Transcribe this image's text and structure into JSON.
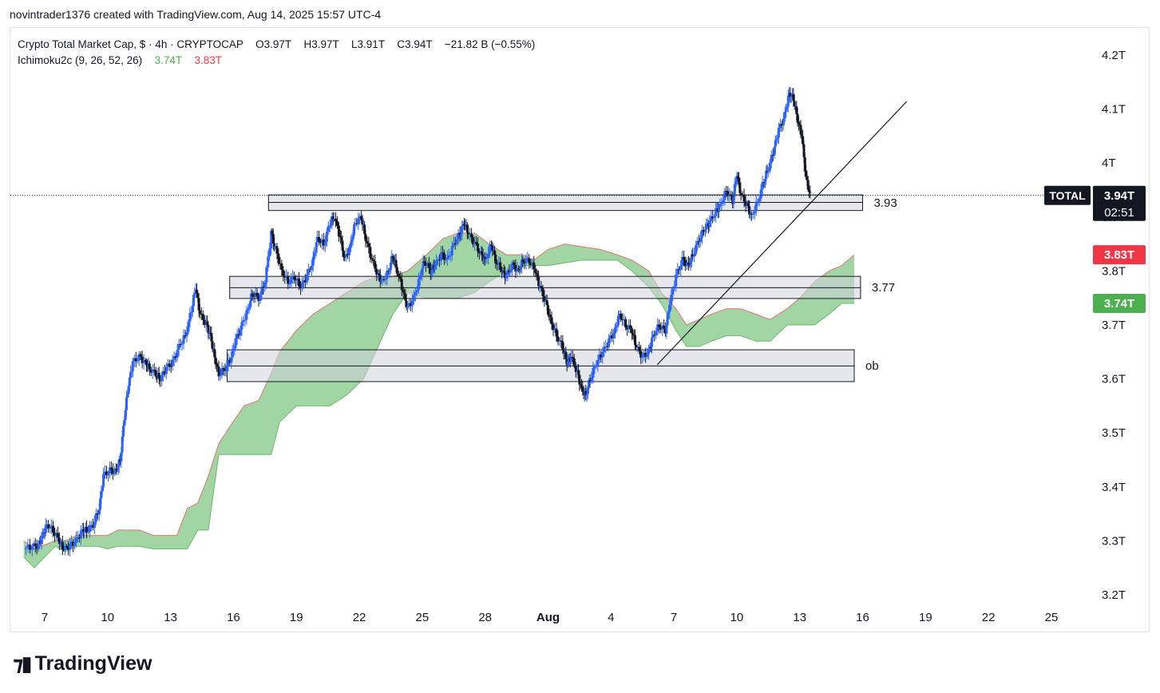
{
  "attribution": "novintrader1376 created with TradingView.com, Aug 14, 2025 15:57 UTC-4",
  "legend": {
    "symbol": "Crypto Total Market Cap, $ · 4h · CRYPTOCAP",
    "open": "O3.97T",
    "high": "H3.97T",
    "low": "L3.91T",
    "close": "C3.94T",
    "change": "−21.82 B (−0.55%)",
    "indicator": "Ichimoku2c (9, 26, 52, 26)",
    "ind_v1": "3.74T",
    "ind_v2": "3.83T"
  },
  "logo_text": "TradingView",
  "colors": {
    "bull": "#2962ff",
    "bear": "#131722",
    "cloud": "#81c784",
    "cloud_edge": "#e57373",
    "zone": "#d1d4dc",
    "zone_edge": "#131722",
    "label_red": "#f23645",
    "label_green": "#4caf50"
  },
  "chart_data": {
    "type": "candlestick",
    "y_axis": {
      "ticks": [
        "3.2T",
        "3.3T",
        "3.4T",
        "3.5T",
        "3.6T",
        "3.7T",
        "3.8T",
        "3.9T",
        "4T",
        "4.1T",
        "4.2T"
      ],
      "tick_values": [
        3.2,
        3.3,
        3.4,
        3.5,
        3.6,
        3.7,
        3.8,
        3.9,
        4.0,
        4.1,
        4.2
      ],
      "range": [
        3.18,
        4.28
      ]
    },
    "x_axis": {
      "ticks": [
        "7",
        "10",
        "13",
        "16",
        "19",
        "22",
        "25",
        "28",
        "Aug",
        "4",
        "7",
        "10",
        "13",
        "16",
        "19",
        "22",
        "25"
      ],
      "range_days": [
        6,
        26.3
      ]
    },
    "price_labels": [
      {
        "text": "TOTAL",
        "value": 3.94,
        "style": "dark"
      },
      {
        "text": "3.94T",
        "sub": "02:51",
        "value": 3.94,
        "style": "dark"
      },
      {
        "text": "3.83T",
        "value": 3.83,
        "style": "red"
      },
      {
        "text": "3.74T",
        "value": 3.74,
        "style": "green"
      }
    ],
    "zones": [
      {
        "label": "3.93",
        "top": 3.941,
        "mid": 3.927,
        "bottom": 3.912,
        "x_start": 17.67,
        "x_end": 46.0
      },
      {
        "label": "3.77",
        "top": 3.79,
        "mid": 3.769,
        "bottom": 3.749,
        "x_start": 15.82,
        "x_end": 45.9
      },
      {
        "label": "ob",
        "top": 3.654,
        "mid": 3.624,
        "bottom": 3.595,
        "x_start": 15.7,
        "x_end": 45.6
      }
    ],
    "trendline": {
      "x1": 36.2,
      "y1": 3.626,
      "x2": 48.1,
      "y2": 4.114
    },
    "cloud": [
      {
        "x": 6.0,
        "upper": 3.3,
        "lower": 3.27
      },
      {
        "x": 6.5,
        "upper": 3.285,
        "lower": 3.25
      },
      {
        "x": 7.5,
        "upper": 3.3,
        "lower": 3.29
      },
      {
        "x": 8.0,
        "upper": 3.3,
        "lower": 3.28
      },
      {
        "x": 8.5,
        "upper": 3.31,
        "lower": 3.29
      },
      {
        "x": 9.5,
        "upper": 3.31,
        "lower": 3.29
      },
      {
        "x": 10.0,
        "upper": 3.31,
        "lower": 3.285
      },
      {
        "x": 10.5,
        "upper": 3.32,
        "lower": 3.29
      },
      {
        "x": 11.5,
        "upper": 3.32,
        "lower": 3.29
      },
      {
        "x": 12.2,
        "upper": 3.31,
        "lower": 3.285
      },
      {
        "x": 13.3,
        "upper": 3.31,
        "lower": 3.285
      },
      {
        "x": 13.8,
        "upper": 3.36,
        "lower": 3.285
      },
      {
        "x": 14.3,
        "upper": 3.37,
        "lower": 3.32
      },
      {
        "x": 14.8,
        "upper": 3.42,
        "lower": 3.32
      },
      {
        "x": 15.3,
        "upper": 3.48,
        "lower": 3.46
      },
      {
        "x": 15.8,
        "upper": 3.51,
        "lower": 3.46
      },
      {
        "x": 16.5,
        "upper": 3.55,
        "lower": 3.46
      },
      {
        "x": 17.2,
        "upper": 3.56,
        "lower": 3.46
      },
      {
        "x": 17.8,
        "upper": 3.61,
        "lower": 3.46
      },
      {
        "x": 18.2,
        "upper": 3.65,
        "lower": 3.52
      },
      {
        "x": 19.0,
        "upper": 3.69,
        "lower": 3.55
      },
      {
        "x": 19.8,
        "upper": 3.72,
        "lower": 3.55
      },
      {
        "x": 20.6,
        "upper": 3.74,
        "lower": 3.55
      },
      {
        "x": 21.4,
        "upper": 3.76,
        "lower": 3.57
      },
      {
        "x": 22.2,
        "upper": 3.78,
        "lower": 3.6
      },
      {
        "x": 22.9,
        "upper": 3.79,
        "lower": 3.66
      },
      {
        "x": 23.6,
        "upper": 3.79,
        "lower": 3.72
      },
      {
        "x": 24.3,
        "upper": 3.8,
        "lower": 3.76
      },
      {
        "x": 25.2,
        "upper": 3.83,
        "lower": 3.75
      },
      {
        "x": 26.0,
        "upper": 3.86,
        "lower": 3.75
      },
      {
        "x": 26.7,
        "upper": 3.87,
        "lower": 3.75
      },
      {
        "x": 27.5,
        "upper": 3.87,
        "lower": 3.76
      },
      {
        "x": 28.2,
        "upper": 3.85,
        "lower": 3.78
      },
      {
        "x": 29.0,
        "upper": 3.83,
        "lower": 3.8
      },
      {
        "x": 29.8,
        "upper": 3.83,
        "lower": 3.81
      },
      {
        "x": 30.3,
        "upper": 3.82,
        "lower": 3.81
      },
      {
        "x": 31.0,
        "upper": 3.84,
        "lower": 3.81
      },
      {
        "x": 31.8,
        "upper": 3.85,
        "lower": 3.815
      },
      {
        "x": 32.6,
        "upper": 3.845,
        "lower": 3.82
      },
      {
        "x": 33.5,
        "upper": 3.84,
        "lower": 3.82
      },
      {
        "x": 34.3,
        "upper": 3.83,
        "lower": 3.82
      },
      {
        "x": 35.0,
        "upper": 3.82,
        "lower": 3.8
      },
      {
        "x": 35.8,
        "upper": 3.8,
        "lower": 3.77
      },
      {
        "x": 36.4,
        "upper": 3.76,
        "lower": 3.74
      },
      {
        "x": 37.1,
        "upper": 3.73,
        "lower": 3.69
      },
      {
        "x": 37.6,
        "upper": 3.7,
        "lower": 3.66
      },
      {
        "x": 38.2,
        "upper": 3.71,
        "lower": 3.66
      },
      {
        "x": 38.8,
        "upper": 3.72,
        "lower": 3.67
      },
      {
        "x": 39.5,
        "upper": 3.73,
        "lower": 3.68
      },
      {
        "x": 40.2,
        "upper": 3.73,
        "lower": 3.68
      },
      {
        "x": 40.9,
        "upper": 3.72,
        "lower": 3.67
      },
      {
        "x": 41.6,
        "upper": 3.71,
        "lower": 3.67
      },
      {
        "x": 42.4,
        "upper": 3.73,
        "lower": 3.7
      },
      {
        "x": 43.0,
        "upper": 3.75,
        "lower": 3.7
      },
      {
        "x": 43.7,
        "upper": 3.78,
        "lower": 3.7
      },
      {
        "x": 44.4,
        "upper": 3.8,
        "lower": 3.72
      },
      {
        "x": 45.0,
        "upper": 3.81,
        "lower": 3.74
      },
      {
        "x": 45.6,
        "upper": 3.83,
        "lower": 3.74
      }
    ],
    "candles_path": [
      {
        "x": 6.0,
        "p": 3.285
      },
      {
        "x": 6.4,
        "p": 3.29
      },
      {
        "x": 6.7,
        "p": 3.29
      },
      {
        "x": 6.9,
        "p": 3.31
      },
      {
        "x": 7.1,
        "p": 3.33
      },
      {
        "x": 7.4,
        "p": 3.32
      },
      {
        "x": 7.7,
        "p": 3.3
      },
      {
        "x": 7.9,
        "p": 3.285
      },
      {
        "x": 8.2,
        "p": 3.29
      },
      {
        "x": 8.5,
        "p": 3.3
      },
      {
        "x": 8.8,
        "p": 3.32
      },
      {
        "x": 9.0,
        "p": 3.32
      },
      {
        "x": 9.3,
        "p": 3.33
      },
      {
        "x": 9.6,
        "p": 3.36
      },
      {
        "x": 9.8,
        "p": 3.42
      },
      {
        "x": 10.1,
        "p": 3.43
      },
      {
        "x": 10.4,
        "p": 3.43
      },
      {
        "x": 10.6,
        "p": 3.45
      },
      {
        "x": 10.8,
        "p": 3.53
      },
      {
        "x": 11.0,
        "p": 3.59
      },
      {
        "x": 11.2,
        "p": 3.63
      },
      {
        "x": 11.5,
        "p": 3.64
      },
      {
        "x": 11.8,
        "p": 3.63
      },
      {
        "x": 12.0,
        "p": 3.62
      },
      {
        "x": 12.3,
        "p": 3.61
      },
      {
        "x": 12.5,
        "p": 3.6
      },
      {
        "x": 12.8,
        "p": 3.62
      },
      {
        "x": 13.1,
        "p": 3.63
      },
      {
        "x": 13.4,
        "p": 3.66
      },
      {
        "x": 13.7,
        "p": 3.68
      },
      {
        "x": 14.0,
        "p": 3.73
      },
      {
        "x": 14.2,
        "p": 3.77
      },
      {
        "x": 14.4,
        "p": 3.72
      },
      {
        "x": 14.7,
        "p": 3.7
      },
      {
        "x": 14.9,
        "p": 3.68
      },
      {
        "x": 15.1,
        "p": 3.64
      },
      {
        "x": 15.3,
        "p": 3.61
      },
      {
        "x": 15.6,
        "p": 3.62
      },
      {
        "x": 15.9,
        "p": 3.64
      },
      {
        "x": 16.1,
        "p": 3.67
      },
      {
        "x": 16.4,
        "p": 3.7
      },
      {
        "x": 16.7,
        "p": 3.73
      },
      {
        "x": 16.9,
        "p": 3.76
      },
      {
        "x": 17.2,
        "p": 3.75
      },
      {
        "x": 17.5,
        "p": 3.78
      },
      {
        "x": 17.8,
        "p": 3.87
      },
      {
        "x": 18.0,
        "p": 3.84
      },
      {
        "x": 18.3,
        "p": 3.8
      },
      {
        "x": 18.6,
        "p": 3.78
      },
      {
        "x": 18.9,
        "p": 3.79
      },
      {
        "x": 19.2,
        "p": 3.77
      },
      {
        "x": 19.5,
        "p": 3.79
      },
      {
        "x": 19.8,
        "p": 3.82
      },
      {
        "x": 20.0,
        "p": 3.86
      },
      {
        "x": 20.3,
        "p": 3.85
      },
      {
        "x": 20.6,
        "p": 3.89
      },
      {
        "x": 20.8,
        "p": 3.9
      },
      {
        "x": 21.1,
        "p": 3.86
      },
      {
        "x": 21.3,
        "p": 3.82
      },
      {
        "x": 21.6,
        "p": 3.85
      },
      {
        "x": 21.8,
        "p": 3.89
      },
      {
        "x": 22.1,
        "p": 3.9
      },
      {
        "x": 22.3,
        "p": 3.86
      },
      {
        "x": 22.6,
        "p": 3.82
      },
      {
        "x": 22.9,
        "p": 3.79
      },
      {
        "x": 23.1,
        "p": 3.78
      },
      {
        "x": 23.4,
        "p": 3.8
      },
      {
        "x": 23.6,
        "p": 3.83
      },
      {
        "x": 23.8,
        "p": 3.8
      },
      {
        "x": 24.1,
        "p": 3.76
      },
      {
        "x": 24.3,
        "p": 3.73
      },
      {
        "x": 24.6,
        "p": 3.75
      },
      {
        "x": 24.9,
        "p": 3.79
      },
      {
        "x": 25.1,
        "p": 3.82
      },
      {
        "x": 25.4,
        "p": 3.8
      },
      {
        "x": 25.6,
        "p": 3.81
      },
      {
        "x": 25.9,
        "p": 3.83
      },
      {
        "x": 26.2,
        "p": 3.82
      },
      {
        "x": 26.5,
        "p": 3.85
      },
      {
        "x": 26.8,
        "p": 3.87
      },
      {
        "x": 27.0,
        "p": 3.89
      },
      {
        "x": 27.2,
        "p": 3.87
      },
      {
        "x": 27.5,
        "p": 3.85
      },
      {
        "x": 27.8,
        "p": 3.83
      },
      {
        "x": 28.0,
        "p": 3.82
      },
      {
        "x": 28.3,
        "p": 3.85
      },
      {
        "x": 28.5,
        "p": 3.82
      },
      {
        "x": 28.8,
        "p": 3.8
      },
      {
        "x": 29.0,
        "p": 3.79
      },
      {
        "x": 29.3,
        "p": 3.81
      },
      {
        "x": 29.6,
        "p": 3.8
      },
      {
        "x": 29.8,
        "p": 3.82
      },
      {
        "x": 30.1,
        "p": 3.82
      },
      {
        "x": 30.4,
        "p": 3.8
      },
      {
        "x": 30.6,
        "p": 3.77
      },
      {
        "x": 30.9,
        "p": 3.74
      },
      {
        "x": 31.1,
        "p": 3.71
      },
      {
        "x": 31.4,
        "p": 3.68
      },
      {
        "x": 31.7,
        "p": 3.66
      },
      {
        "x": 31.9,
        "p": 3.63
      },
      {
        "x": 32.1,
        "p": 3.64
      },
      {
        "x": 32.4,
        "p": 3.61
      },
      {
        "x": 32.6,
        "p": 3.58
      },
      {
        "x": 32.8,
        "p": 3.57
      },
      {
        "x": 33.0,
        "p": 3.6
      },
      {
        "x": 33.3,
        "p": 3.63
      },
      {
        "x": 33.6,
        "p": 3.65
      },
      {
        "x": 33.9,
        "p": 3.67
      },
      {
        "x": 34.2,
        "p": 3.69
      },
      {
        "x": 34.4,
        "p": 3.72
      },
      {
        "x": 34.7,
        "p": 3.7
      },
      {
        "x": 35.0,
        "p": 3.69
      },
      {
        "x": 35.2,
        "p": 3.66
      },
      {
        "x": 35.5,
        "p": 3.64
      },
      {
        "x": 35.8,
        "p": 3.65
      },
      {
        "x": 36.0,
        "p": 3.68
      },
      {
        "x": 36.3,
        "p": 3.7
      },
      {
        "x": 36.6,
        "p": 3.69
      },
      {
        "x": 36.8,
        "p": 3.74
      },
      {
        "x": 37.1,
        "p": 3.79
      },
      {
        "x": 37.4,
        "p": 3.82
      },
      {
        "x": 37.7,
        "p": 3.81
      },
      {
        "x": 37.9,
        "p": 3.83
      },
      {
        "x": 38.2,
        "p": 3.86
      },
      {
        "x": 38.5,
        "p": 3.88
      },
      {
        "x": 38.7,
        "p": 3.89
      },
      {
        "x": 39.0,
        "p": 3.91
      },
      {
        "x": 39.2,
        "p": 3.92
      },
      {
        "x": 39.5,
        "p": 3.95
      },
      {
        "x": 39.8,
        "p": 3.93
      },
      {
        "x": 40.0,
        "p": 3.98
      },
      {
        "x": 40.2,
        "p": 3.94
      },
      {
        "x": 40.5,
        "p": 3.92
      },
      {
        "x": 40.7,
        "p": 3.9
      },
      {
        "x": 41.0,
        "p": 3.93
      },
      {
        "x": 41.3,
        "p": 3.97
      },
      {
        "x": 41.5,
        "p": 3.99
      },
      {
        "x": 41.8,
        "p": 4.03
      },
      {
        "x": 42.0,
        "p": 4.06
      },
      {
        "x": 42.3,
        "p": 4.09
      },
      {
        "x": 42.5,
        "p": 4.13
      },
      {
        "x": 42.7,
        "p": 4.12
      },
      {
        "x": 42.9,
        "p": 4.08
      },
      {
        "x": 43.1,
        "p": 4.05
      },
      {
        "x": 43.3,
        "p": 3.97
      },
      {
        "x": 43.5,
        "p": 3.94
      }
    ],
    "x_scale_note": "candle x in day units"
  }
}
